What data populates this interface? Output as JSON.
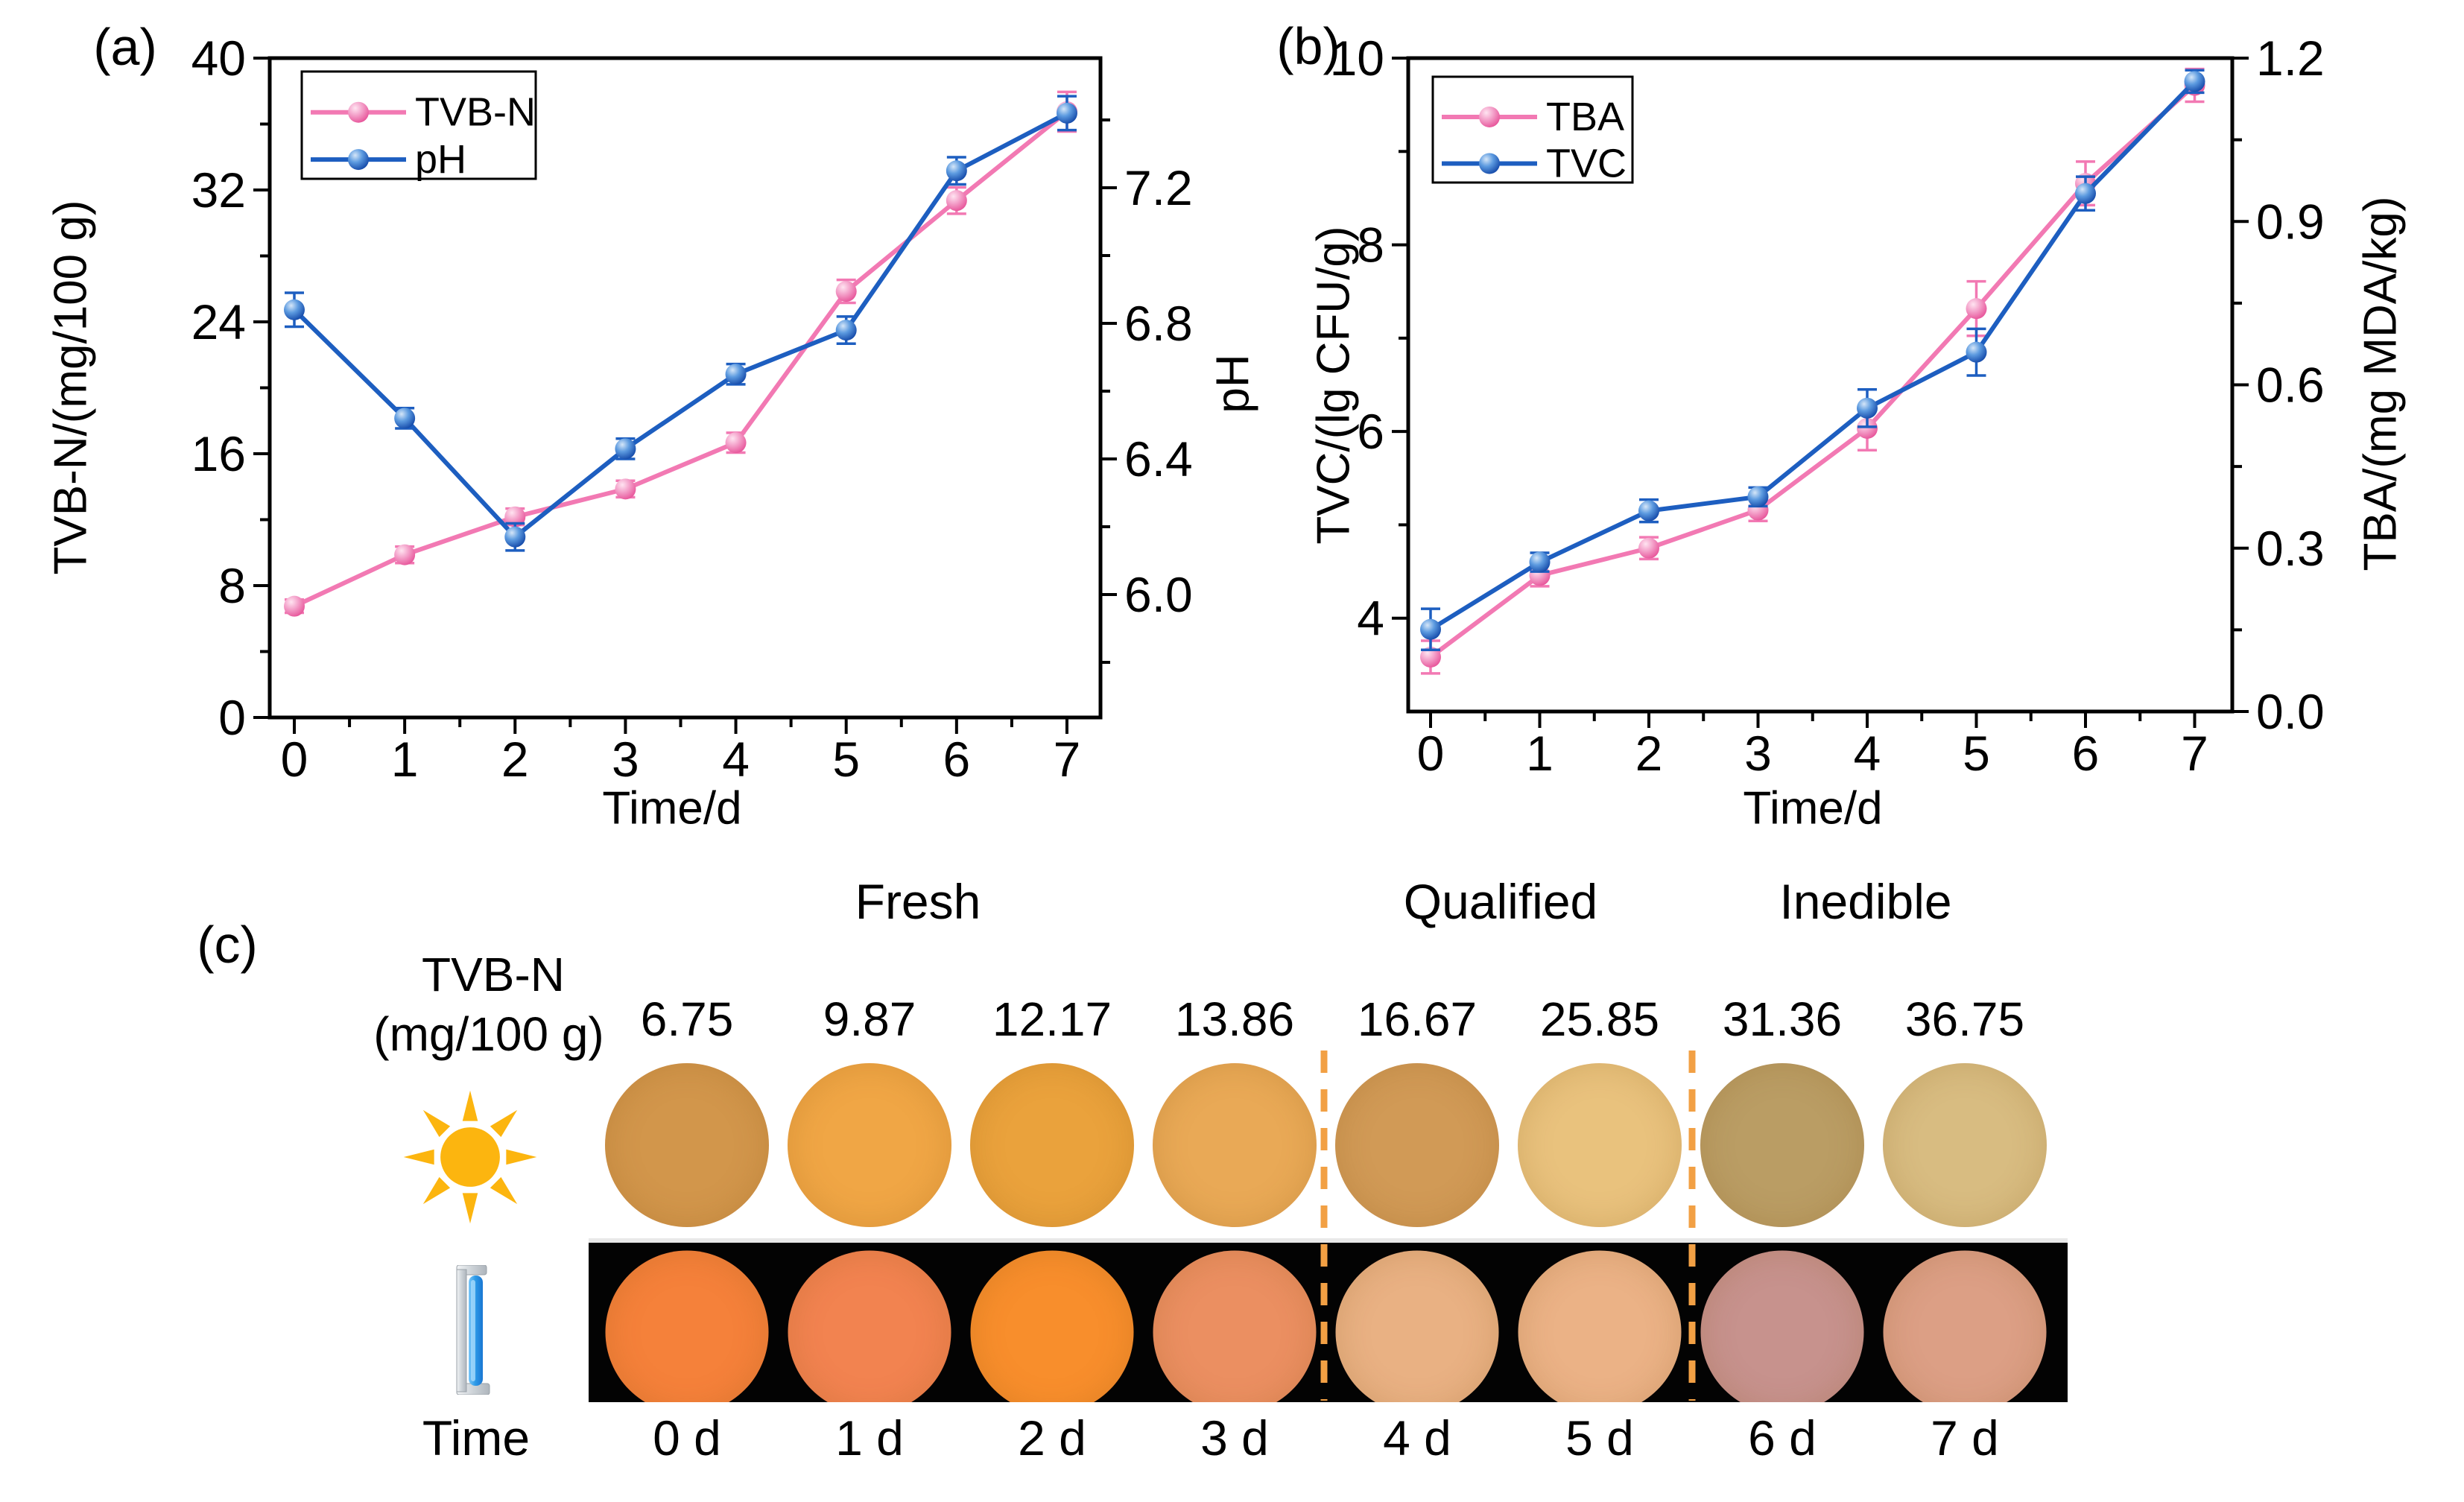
{
  "panels": {
    "a_label": "(a)",
    "b_label": "(b)",
    "c_label": "(c)"
  },
  "chart_data": [
    {
      "id": "a",
      "type": "line",
      "x_label": "Time/d",
      "x": [
        0,
        1,
        2,
        3,
        4,
        5,
        6,
        7
      ],
      "x_ticks": [
        "0",
        "1",
        "2",
        "3",
        "4",
        "5",
        "6",
        "7"
      ],
      "grid": false,
      "legend_position": "upper-left",
      "left_axis": {
        "title": "TVB-N/(mg/100 g)",
        "ticks": [
          "0",
          "8",
          "16",
          "24",
          "32",
          "40"
        ],
        "tick_values": [
          0,
          8,
          16,
          24,
          32,
          40
        ],
        "minor_values": [
          4,
          12,
          20,
          28,
          36
        ],
        "range": [
          0,
          40
        ]
      },
      "right_axis": {
        "title": "pH",
        "ticks": [
          "6.0",
          "6.4",
          "6.8",
          "7.2"
        ],
        "tick_values": [
          6.0,
          6.4,
          6.8,
          7.2
        ],
        "minor_values": [
          5.8,
          6.2,
          6.6,
          7.0,
          7.4
        ],
        "range": [
          5.64,
          7.59
        ]
      },
      "series": [
        {
          "name": "TVB-N",
          "axis": "left",
          "color": "#F279B3",
          "marker_gradient": [
            "#FFE4F1",
            "#F4A3CB",
            "#E75399"
          ],
          "values": [
            6.75,
            9.87,
            12.17,
            13.86,
            16.67,
            25.85,
            31.36,
            36.75
          ],
          "errors": [
            0.4,
            0.5,
            0.5,
            0.5,
            0.6,
            0.7,
            0.8,
            1.2
          ]
        },
        {
          "name": "pH",
          "axis": "right",
          "color": "#1D5EC0",
          "marker_gradient": [
            "#D5E6F8",
            "#5D9BE0",
            "#1348A8"
          ],
          "values": [
            6.84,
            6.52,
            6.17,
            6.43,
            6.65,
            6.78,
            7.25,
            7.42
          ],
          "errors": [
            0.05,
            0.03,
            0.04,
            0.03,
            0.03,
            0.04,
            0.04,
            0.05
          ]
        }
      ],
      "legend": [
        "TVB-N",
        "pH"
      ]
    },
    {
      "id": "b",
      "type": "line",
      "x_label": "Time/d",
      "x": [
        0,
        1,
        2,
        3,
        4,
        5,
        6,
        7
      ],
      "x_ticks": [
        "0",
        "1",
        "2",
        "3",
        "4",
        "5",
        "6",
        "7"
      ],
      "grid": false,
      "legend_position": "upper-left",
      "left_axis": {
        "title": "TVC/(lg CFU/g)",
        "ticks": [
          "4",
          "6",
          "8",
          "10"
        ],
        "tick_values": [
          4,
          6,
          8,
          10
        ],
        "minor_values": [
          5,
          7,
          9
        ],
        "range": [
          3,
          10
        ]
      },
      "right_axis": {
        "title": "TBA/(mg MDA/kg)",
        "ticks": [
          "0.0",
          "0.3",
          "0.6",
          "0.9",
          "1.2"
        ],
        "tick_values": [
          0.0,
          0.3,
          0.6,
          0.9,
          1.2
        ],
        "minor_values": [
          0.15,
          0.45,
          0.75,
          1.05
        ],
        "range": [
          0.0,
          1.2
        ]
      },
      "series": [
        {
          "name": "TBA",
          "axis": "right",
          "color": "#F279B3",
          "marker_gradient": [
            "#FFE4F1",
            "#F4A3CB",
            "#E75399"
          ],
          "values": [
            0.1,
            0.25,
            0.3,
            0.37,
            0.52,
            0.74,
            0.97,
            1.15
          ],
          "errors": [
            0.03,
            0.02,
            0.02,
            0.02,
            0.04,
            0.05,
            0.04,
            0.03
          ]
        },
        {
          "name": "TVC",
          "axis": "left",
          "color": "#1D5EC0",
          "marker_gradient": [
            "#D5E6F8",
            "#5D9BE0",
            "#1348A8"
          ],
          "values": [
            3.88,
            4.6,
            5.15,
            5.3,
            6.25,
            6.85,
            8.55,
            9.75
          ],
          "errors": [
            0.22,
            0.1,
            0.12,
            0.1,
            0.2,
            0.25,
            0.18,
            0.12
          ]
        }
      ],
      "legend": [
        "TBA",
        "TVC"
      ]
    }
  ],
  "panel_c": {
    "zones": [
      {
        "label": "Fresh"
      },
      {
        "label": "Qualified"
      },
      {
        "label": "Inedible"
      }
    ],
    "tvbn_header_line1": "TVB-N",
    "tvbn_header_line2": "(mg/100 g)",
    "time_label": "Time",
    "uv_panel_background": "#030303",
    "separator_color": "#F2A044",
    "sun_color": "#FCB50F",
    "lamp_tube_color": "#2E9BE8",
    "samples": [
      {
        "tvbn": "6.75",
        "time": "0 d",
        "visible_color": "#D2964B",
        "uv_color": "#F5813A"
      },
      {
        "tvbn": "9.87",
        "time": "1 d",
        "visible_color": "#F0A645",
        "uv_color": "#F28350"
      },
      {
        "tvbn": "12.17",
        "time": "2 d",
        "visible_color": "#EAA23C",
        "uv_color": "#F88E2C"
      },
      {
        "tvbn": "13.86",
        "time": "3 d",
        "visible_color": "#E9A956",
        "uv_color": "#EB8F61"
      },
      {
        "tvbn": "16.67",
        "time": "4 d",
        "visible_color": "#D19A56",
        "uv_color": "#E9B183"
      },
      {
        "tvbn": "25.85",
        "time": "5 d",
        "visible_color": "#E9C27D",
        "uv_color": "#EBB286"
      },
      {
        "tvbn": "31.36",
        "time": "6 d",
        "visible_color": "#BA9D64",
        "uv_color": "#C7928D"
      },
      {
        "tvbn": "36.75",
        "time": "7 d",
        "visible_color": "#D8BC81",
        "uv_color": "#DC9F85"
      }
    ]
  }
}
